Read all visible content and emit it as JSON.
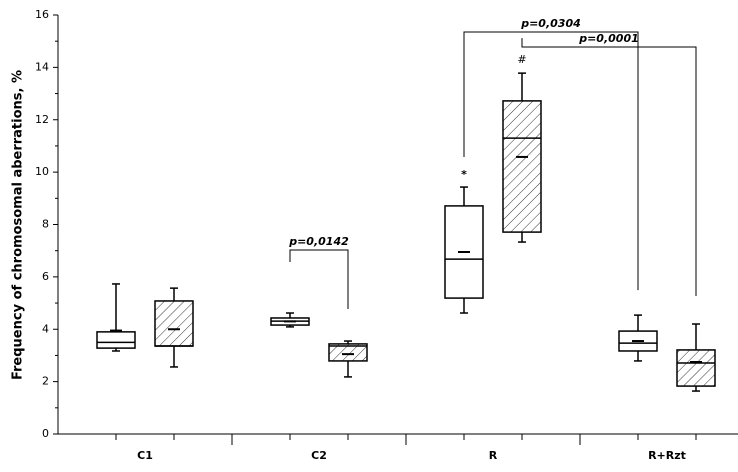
{
  "chart_data": {
    "type": "box",
    "ylabel": "Frequency of chromosomal aberrations, %",
    "categories": [
      "C1",
      "C2",
      "R",
      "R+Rzt"
    ],
    "ylim": [
      0,
      16
    ],
    "yticks": [
      0,
      2,
      4,
      6,
      8,
      10,
      12,
      14,
      16
    ],
    "series": [
      {
        "color": "#000000",
        "hatch": false,
        "values": [
          {
            "whislo": 3.17,
            "q1": 3.28,
            "med": 3.5,
            "mean": 3.95,
            "q3": 3.9,
            "whishi": 5.73
          },
          {
            "whislo": 4.09,
            "q1": 4.16,
            "med": 4.31,
            "mean": 4.3,
            "q3": 4.43,
            "whishi": 4.62
          },
          {
            "whislo": 4.62,
            "q1": 5.19,
            "med": 6.68,
            "mean": 6.95,
            "q3": 8.71,
            "whishi": 9.43
          },
          {
            "whislo": 2.79,
            "q1": 3.17,
            "med": 3.47,
            "mean": 3.55,
            "q3": 3.93,
            "whishi": 4.54
          }
        ]
      },
      {
        "color": "#000000",
        "hatch": true,
        "values": [
          {
            "whislo": 2.56,
            "q1": 3.36,
            "med": 3.36,
            "mean": 4.0,
            "q3": 5.08,
            "whishi": 5.57
          },
          {
            "whislo": 2.18,
            "q1": 2.79,
            "med": 3.36,
            "mean": 3.05,
            "q3": 3.44,
            "whishi": 3.55
          },
          {
            "whislo": 7.33,
            "q1": 7.71,
            "med": 11.3,
            "mean": 10.58,
            "q3": 12.72,
            "whishi": 13.78
          },
          {
            "whislo": 1.64,
            "q1": 1.83,
            "med": 2.71,
            "mean": 2.75,
            "q3": 3.21,
            "whishi": 4.2
          }
        ]
      }
    ],
    "annotations": [
      "p=0,0142",
      "p=0,0304",
      "p=0,0001",
      "*",
      "#"
    ]
  }
}
